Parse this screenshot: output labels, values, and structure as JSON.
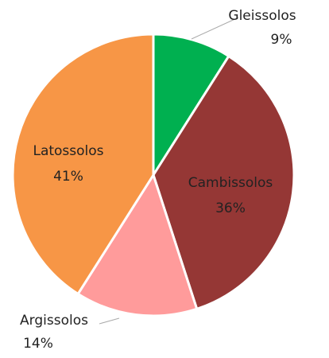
{
  "chart_data": {
    "type": "pie",
    "categories": [
      "Gleissolos",
      "Cambissolos",
      "Argissolos",
      "Latossolos"
    ],
    "values": [
      9,
      36,
      14,
      41
    ],
    "value_labels": [
      "9%",
      "36%",
      "14%",
      "41%"
    ],
    "colors": [
      "#00b050",
      "#953735",
      "#ff9b9b",
      "#f79646"
    ]
  }
}
